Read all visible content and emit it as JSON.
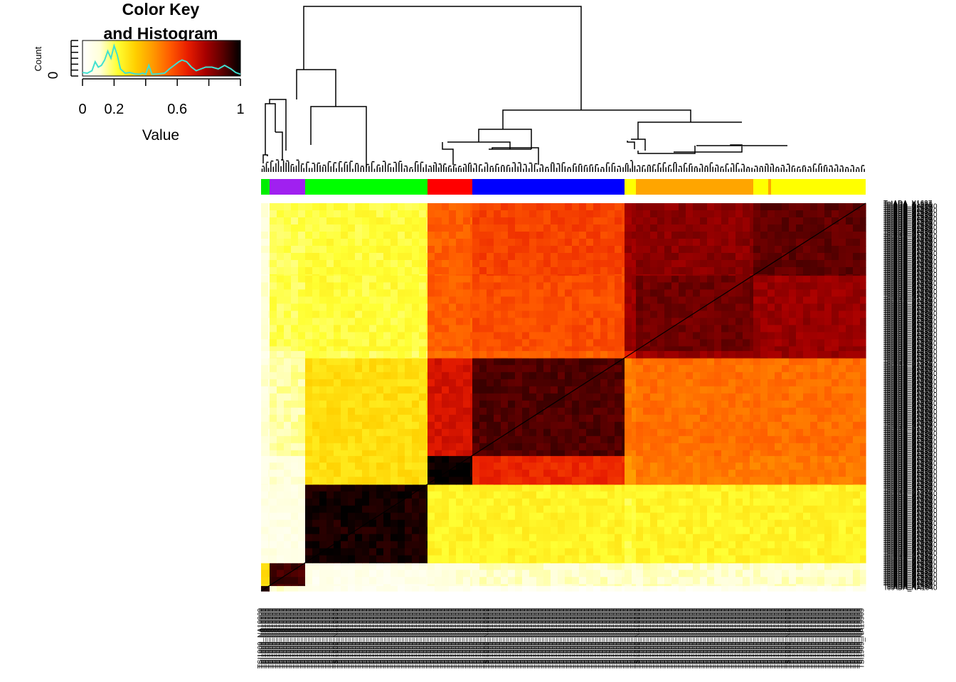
{
  "color_key": {
    "title_line1": "Color Key",
    "title_line2": "and Histogram",
    "ylabel": "Count",
    "y_tick": "0",
    "xlabel": "Value",
    "x_ticks": [
      "0",
      "0.2",
      "0.6",
      "1"
    ],
    "x_tick_values": [
      0,
      0.2,
      0.6,
      1
    ],
    "palette": [
      "#ffffff",
      "#ffffd9",
      "#ffff33",
      "#ffd000",
      "#ff9a00",
      "#ff5a00",
      "#e81d00",
      "#a80000",
      "#5a0000",
      "#000000"
    ],
    "histogram_color": "#40e0d0",
    "histogram_density": [
      [
        0.0,
        0.1
      ],
      [
        0.03,
        0.08
      ],
      [
        0.06,
        0.15
      ],
      [
        0.08,
        0.4
      ],
      [
        0.1,
        0.25
      ],
      [
        0.12,
        0.3
      ],
      [
        0.14,
        0.45
      ],
      [
        0.16,
        0.7
      ],
      [
        0.18,
        0.5
      ],
      [
        0.2,
        0.85
      ],
      [
        0.22,
        0.6
      ],
      [
        0.24,
        0.2
      ],
      [
        0.27,
        0.08
      ],
      [
        0.3,
        0.1
      ],
      [
        0.33,
        0.06
      ],
      [
        0.36,
        0.05
      ],
      [
        0.38,
        0.08
      ],
      [
        0.4,
        0.05
      ],
      [
        0.42,
        0.3
      ],
      [
        0.44,
        0.05
      ],
      [
        0.48,
        0.06
      ],
      [
        0.52,
        0.08
      ],
      [
        0.55,
        0.2
      ],
      [
        0.58,
        0.3
      ],
      [
        0.61,
        0.4
      ],
      [
        0.63,
        0.45
      ],
      [
        0.66,
        0.4
      ],
      [
        0.69,
        0.25
      ],
      [
        0.72,
        0.15
      ],
      [
        0.75,
        0.2
      ],
      [
        0.78,
        0.25
      ],
      [
        0.82,
        0.25
      ],
      [
        0.86,
        0.2
      ],
      [
        0.9,
        0.3
      ],
      [
        0.94,
        0.2
      ],
      [
        0.97,
        0.1
      ],
      [
        1.0,
        0.05
      ]
    ]
  },
  "chart_data": {
    "type": "heatmap",
    "title": "",
    "value_range": [
      0,
      1
    ],
    "dendrogram": "top (columns)",
    "row_labels_visible": [
      "TotADA_X1637",
      "TotADA_X1632",
      "TotADA_X1556",
      "TotADA_NA1940"
    ],
    "column_label_example": "TSI1909_NA19909",
    "groups": [
      {
        "color": "#00ee00",
        "value_self": 0.35
      },
      {
        "color": "#a020f0",
        "value_self": 0.88
      },
      {
        "color": "#00ff00",
        "value_self": 0.92
      },
      {
        "color": "#ff0000",
        "value_self": 0.95
      },
      {
        "color": "#0000ff",
        "value_self": 0.86
      },
      {
        "color": "#ffff00",
        "value_self": 0.6
      },
      {
        "color": "#ffa500",
        "value_self": 0.78
      },
      {
        "color": "#ffff00",
        "value_self": 0.8
      }
    ],
    "block_values": [
      [
        0.95,
        0.1,
        0.05,
        0.05,
        0.04,
        0.06,
        0.05,
        0.05
      ],
      [
        0.3,
        0.92,
        0.06,
        0.1,
        0.12,
        0.12,
        0.12,
        0.12
      ],
      [
        0.08,
        0.08,
        0.97,
        0.25,
        0.25,
        0.22,
        0.25,
        0.25
      ],
      [
        0.08,
        0.1,
        0.3,
        0.99,
        0.65,
        0.45,
        0.5,
        0.5
      ],
      [
        0.1,
        0.15,
        0.3,
        0.7,
        0.9,
        0.5,
        0.52,
        0.52
      ],
      [
        0.06,
        0.15,
        0.2,
        0.52,
        0.55,
        0.7,
        0.8,
        0.8
      ],
      [
        0.1,
        0.2,
        0.22,
        0.55,
        0.58,
        0.8,
        0.86,
        0.8
      ],
      [
        0.1,
        0.2,
        0.22,
        0.55,
        0.6,
        0.8,
        0.82,
        0.88
      ]
    ]
  }
}
